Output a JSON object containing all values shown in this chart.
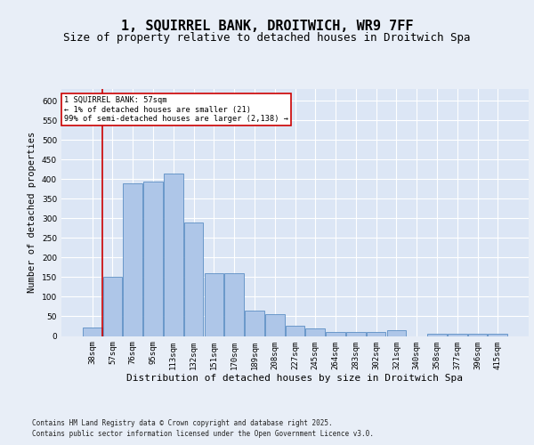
{
  "title": "1, SQUIRREL BANK, DROITWICH, WR9 7FF",
  "subtitle": "Size of property relative to detached houses in Droitwich Spa",
  "xlabel": "Distribution of detached houses by size in Droitwich Spa",
  "ylabel": "Number of detached properties",
  "footer1": "Contains HM Land Registry data © Crown copyright and database right 2025.",
  "footer2": "Contains public sector information licensed under the Open Government Licence v3.0.",
  "categories": [
    "38sqm",
    "57sqm",
    "76sqm",
    "95sqm",
    "113sqm",
    "132sqm",
    "151sqm",
    "170sqm",
    "189sqm",
    "208sqm",
    "227sqm",
    "245sqm",
    "264sqm",
    "283sqm",
    "302sqm",
    "321sqm",
    "340sqm",
    "358sqm",
    "377sqm",
    "396sqm",
    "415sqm"
  ],
  "values": [
    21,
    150,
    390,
    395,
    415,
    290,
    160,
    160,
    65,
    55,
    25,
    20,
    10,
    10,
    10,
    15,
    0,
    5,
    5,
    5,
    5
  ],
  "bar_color": "#aec6e8",
  "bar_edge_color": "#5b8ec4",
  "highlight_index": 1,
  "highlight_line_color": "#cc0000",
  "annotation_text": "1 SQUIRREL BANK: 57sqm\n← 1% of detached houses are smaller (21)\n99% of semi-detached houses are larger (2,138) →",
  "annotation_box_color": "#ffffff",
  "annotation_box_edge_color": "#cc0000",
  "ylim": [
    0,
    630
  ],
  "yticks": [
    0,
    50,
    100,
    150,
    200,
    250,
    300,
    350,
    400,
    450,
    500,
    550,
    600
  ],
  "bg_color": "#e8eef7",
  "plot_bg_color": "#dce6f5",
  "grid_color": "#ffffff",
  "title_fontsize": 11,
  "subtitle_fontsize": 9,
  "ylabel_fontsize": 7.5,
  "xlabel_fontsize": 8,
  "tick_fontsize": 6.5,
  "footer_fontsize": 5.5
}
